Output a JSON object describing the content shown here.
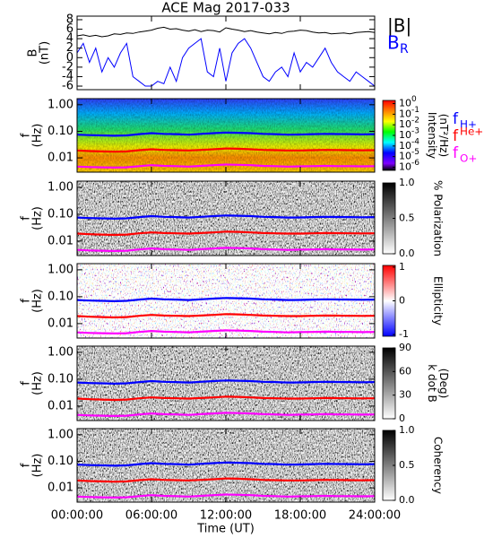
{
  "chart_data": [
    {
      "type": "line",
      "title": "ACE Mag 2017-033",
      "ylabel": [
        "B",
        "(nT)"
      ],
      "x": [
        0,
        0.5,
        1,
        1.5,
        2,
        2.5,
        3,
        3.5,
        4,
        4.5,
        5,
        5.5,
        6,
        6.5,
        7,
        7.5,
        8,
        8.5,
        9,
        9.5,
        10,
        10.5,
        11,
        11.5,
        12,
        12.5,
        13,
        13.5,
        14,
        14.5,
        15,
        15.5,
        16,
        16.5,
        17,
        17.5,
        18,
        18.5,
        19,
        19.5,
        20,
        20.5,
        21,
        21.5,
        22,
        22.5,
        23,
        23.5,
        24
      ],
      "series": [
        {
          "name": "|B|",
          "color": "#000000",
          "values": [
            4.6,
            4.8,
            4.5,
            4.7,
            4.4,
            4.6,
            5.0,
            4.9,
            5.2,
            5.1,
            5.4,
            5.6,
            5.8,
            6.2,
            6.4,
            6.0,
            6.1,
            5.8,
            5.6,
            5.9,
            5.5,
            5.8,
            5.7,
            5.4,
            6.3,
            6.0,
            5.8,
            5.5,
            5.7,
            5.4,
            5.2,
            5.0,
            5.3,
            5.1,
            5.5,
            5.6,
            5.8,
            5.7,
            5.4,
            5.2,
            5.3,
            5.0,
            5.1,
            5.2,
            5.0,
            5.3,
            5.4,
            5.5,
            5.3
          ]
        },
        {
          "name": "B",
          "name_sub": "R",
          "color": "#0000ff",
          "values": [
            1,
            3,
            -1,
            2,
            -3,
            0,
            -2,
            1,
            3,
            -4,
            -5,
            -6,
            -6,
            -5,
            -5.5,
            -2,
            -5,
            0,
            2,
            3,
            4,
            -3,
            -4,
            2,
            -5,
            1,
            3,
            4,
            2,
            -1,
            -4,
            -5,
            -3,
            -2,
            -4,
            1,
            -3,
            -1,
            -2,
            0,
            2,
            -1,
            -3,
            -4,
            -5,
            -3,
            -4,
            -5,
            -6
          ]
        }
      ],
      "xlim": [
        0,
        24
      ],
      "ylim": [
        -6.75,
        8.75
      ],
      "yticks": [
        -6,
        -4,
        -2,
        0,
        2,
        4,
        6,
        8
      ]
    },
    {
      "type": "spectrogram",
      "ylabel": [
        "f",
        "(Hz)"
      ],
      "ylog": true,
      "xlim": [
        0,
        24
      ],
      "ylim": [
        0.0029,
        1.7
      ],
      "yticks": [
        {
          "value": 1,
          "label": "1.00"
        },
        {
          "value": 0.1,
          "label": "0.10"
        },
        {
          "value": 0.01,
          "label": "0.01"
        }
      ],
      "x": [
        0,
        1,
        2,
        3,
        4,
        5,
        6,
        7,
        8,
        9,
        10,
        11,
        12,
        13,
        14,
        15,
        16,
        17,
        18,
        19,
        20,
        21,
        22,
        23,
        24
      ],
      "series": [
        {
          "name": "f",
          "name_sub": "H+",
          "color": "#0000ff",
          "values": [
            0.075,
            0.072,
            0.07,
            0.068,
            0.07,
            0.078,
            0.085,
            0.08,
            0.078,
            0.075,
            0.08,
            0.085,
            0.09,
            0.088,
            0.085,
            0.08,
            0.078,
            0.075,
            0.076,
            0.078,
            0.08,
            0.079,
            0.078,
            0.077,
            0.078
          ]
        },
        {
          "name": "f",
          "name_sup": "He+",
          "color": "#ff0000",
          "values": [
            0.019,
            0.018,
            0.0175,
            0.017,
            0.0175,
            0.0195,
            0.021,
            0.02,
            0.0195,
            0.019,
            0.02,
            0.021,
            0.0225,
            0.022,
            0.021,
            0.02,
            0.0195,
            0.019,
            0.019,
            0.0195,
            0.02,
            0.0198,
            0.0195,
            0.0193,
            0.0195
          ]
        },
        {
          "name": "f",
          "name_sub": "O+",
          "color": "#ff00ff",
          "values": [
            0.0047,
            0.0045,
            0.0044,
            0.0043,
            0.0044,
            0.0049,
            0.0053,
            0.005,
            0.0049,
            0.0047,
            0.005,
            0.0053,
            0.0056,
            0.0055,
            0.0053,
            0.005,
            0.0049,
            0.0047,
            0.0048,
            0.0049,
            0.005,
            0.0049,
            0.0049,
            0.0048,
            0.0049
          ]
        }
      ],
      "colorbar": {
        "label": [
          "Intensity",
          "(nT²/Hz)"
        ],
        "colormap": "rainbow",
        "lim": [
          -6.3,
          0.3
        ],
        "ticks": [
          {
            "value": 0,
            "label": "10",
            "sup": "0"
          },
          {
            "value": -1,
            "label": "10",
            "sup": "-1"
          },
          {
            "value": -2,
            "label": "10",
            "sup": "-2"
          },
          {
            "value": -3,
            "label": "10",
            "sup": "-3"
          },
          {
            "value": -4,
            "label": "10",
            "sup": "-4"
          },
          {
            "value": -5,
            "label": "10",
            "sup": "-5"
          },
          {
            "value": -6,
            "label": "10",
            "sup": "-6"
          }
        ]
      }
    },
    {
      "type": "spectrogram",
      "ylabel": [
        "f",
        "(Hz)"
      ],
      "ylog": true,
      "xlim": [
        0,
        24
      ],
      "ylim": [
        0.0029,
        1.7
      ],
      "yticks": [
        {
          "value": 1,
          "label": "1.00"
        },
        {
          "value": 0.1,
          "label": "0.10"
        },
        {
          "value": 0.01,
          "label": "0.01"
        }
      ],
      "colorbar": {
        "label": [
          "% Polarization"
        ],
        "colormap": "gray",
        "lim": [
          0,
          1
        ],
        "ticks": [
          {
            "value": 1,
            "label": "1.0"
          },
          0.5,
          {
            "value": 0,
            "label": "0.0"
          }
        ]
      }
    },
    {
      "type": "spectrogram",
      "ylabel": [
        "f",
        "(Hz)"
      ],
      "ylog": true,
      "xlim": [
        0,
        24
      ],
      "ylim": [
        0.0029,
        1.7
      ],
      "yticks": [
        {
          "value": 1,
          "label": "1.00"
        },
        {
          "value": 0.1,
          "label": "0.10"
        },
        {
          "value": 0.01,
          "label": "0.01"
        }
      ],
      "colorbar": {
        "label": [
          "Ellipticity"
        ],
        "colormap": "bwr",
        "lim": [
          -1.05,
          1.05
        ],
        "ticks": [
          1,
          0,
          -1
        ]
      }
    },
    {
      "type": "spectrogram",
      "ylabel": [
        "f",
        "(Hz)"
      ],
      "ylog": true,
      "xlim": [
        0,
        24
      ],
      "ylim": [
        0.0029,
        1.7
      ],
      "yticks": [
        {
          "value": 1,
          "label": "1.00"
        },
        {
          "value": 0.1,
          "label": "0.10"
        },
        {
          "value": 0.01,
          "label": "0.01"
        }
      ],
      "colorbar": {
        "label": [
          "k dot B",
          "(Deg)"
        ],
        "colormap": "gray",
        "lim": [
          0,
          90
        ],
        "ticks": [
          90,
          60,
          30,
          0
        ]
      }
    },
    {
      "type": "spectrogram",
      "ylabel": [
        "f",
        "(Hz)"
      ],
      "ylog": true,
      "xlim": [
        0,
        24
      ],
      "ylim": [
        0.0029,
        1.7
      ],
      "yticks": [
        {
          "value": 1,
          "label": "1.00"
        },
        {
          "value": 0.1,
          "label": "0.10"
        },
        {
          "value": 0.01,
          "label": "0.01"
        }
      ],
      "colorbar": {
        "label": [
          "Coherency"
        ],
        "colormap": "gray",
        "lim": [
          0,
          1
        ],
        "ticks": [
          {
            "value": 1,
            "label": "1.0"
          },
          0.5,
          {
            "value": 0,
            "label": "0.0"
          }
        ]
      },
      "xlabel": "Time (UT)",
      "xticks": [
        {
          "value": 0,
          "label": "00:00:00"
        },
        {
          "value": 6,
          "label": "06:00:00"
        },
        {
          "value": 12,
          "label": "12:00:00"
        },
        {
          "value": 18,
          "label": "18:00:00"
        },
        {
          "value": 24,
          "label": "24:00:00"
        }
      ]
    }
  ]
}
